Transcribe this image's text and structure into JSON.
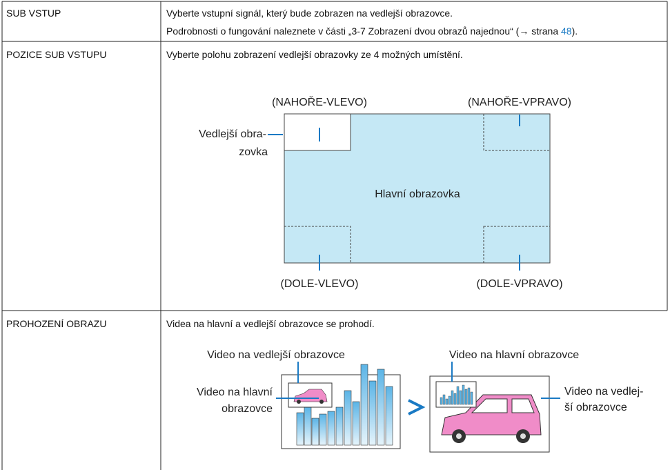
{
  "table": {
    "rows": [
      {
        "label": "SUB VSTUP",
        "text": [
          "Vyberte vstupní signál, který bude zobrazen na vedlejší obrazovce.",
          "Podrobnosti o fungování naleznete v části „3-7 Zobrazení dvou obrazů najednou“ (→ strana "
        ],
        "link": "48",
        "link_suffix": ")."
      },
      {
        "label": "POZICE SUB VSTUPU",
        "text": [
          "Vyberte polohu zobrazení vedlejší obrazovky ze 4 možných umístění."
        ],
        "diagram": {
          "top_left": "(NAHOŘE-VLEVO)",
          "top_right": "(NAHOŘE-VPRAVO)",
          "sub_screen": [
            "Vedlejší obra-",
            "zovka"
          ],
          "main_screen": "Hlavní obrazovka",
          "bottom_left": "(DOLE-VLEVO)",
          "bottom_right": "(DOLE-VPRAVO)"
        }
      },
      {
        "label": "PROHOZENÍ OBRAZU",
        "text": [
          "Videa na hlavní a vedlejší obrazovce se prohodí."
        ],
        "diagram": {
          "sub_video_label": "Video na vedlejší obrazovce",
          "main_video_label": "Video na hlavní obrazovce",
          "main_video_left": [
            "Video na hlavní",
            "obrazovce"
          ],
          "sub_video_right": [
            "Video na vedlej-",
            "ší obrazovce"
          ]
        }
      }
    ]
  }
}
